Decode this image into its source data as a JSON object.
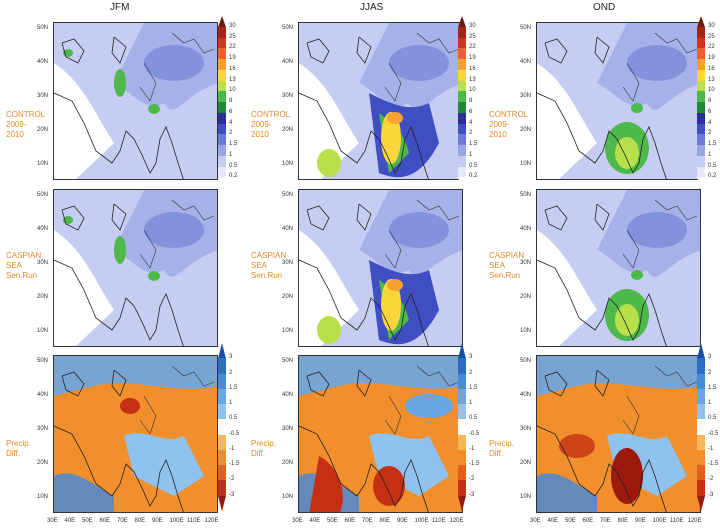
{
  "seasons": [
    "JFM",
    "JJAS",
    "OND"
  ],
  "row_labels": {
    "control": [
      "CONTROL",
      "2009-",
      "2010"
    ],
    "caspian": [
      "CASPIAN",
      "SEA",
      "Sen.Run"
    ],
    "diff": [
      "Precip.",
      "Diff."
    ]
  },
  "lat_labels": [
    "50N",
    "40N",
    "30N",
    "20N",
    "10N"
  ],
  "lon_labels": [
    "30E",
    "40E",
    "50E",
    "60E",
    "70E",
    "80E",
    "90E",
    "100E",
    "110E",
    "120E"
  ],
  "precip_scale": {
    "ticks": [
      "30",
      "25",
      "22",
      "19",
      "16",
      "13",
      "10",
      "8",
      "6",
      "4",
      "2",
      "1.5",
      "1",
      "0.5",
      "0.2"
    ],
    "colors": [
      "#6b1a0b",
      "#a42419",
      "#d6301e",
      "#f0602a",
      "#f8a12f",
      "#fbd63a",
      "#b9e04a",
      "#4cb94a",
      "#1d8a3a",
      "#2c2f96",
      "#3f4fc2",
      "#6d7bd6",
      "#9aa5e6",
      "#c6cdf2",
      "#e6e9fa",
      "#ffffff"
    ]
  },
  "diff_scale": {
    "ticks": [
      "3",
      "2",
      "1.5",
      "1",
      "0.5",
      "-0.5",
      "-1",
      "-1.5",
      "-2",
      "-3"
    ],
    "colors": [
      "#1a4fa3",
      "#2f6cc4",
      "#4b8ad6",
      "#6aa6e4",
      "#90c2ef",
      "#ffffff",
      "#f6b65a",
      "#f08f2c",
      "#e0601c",
      "#c53015",
      "#9b1a0c"
    ]
  },
  "chart_data": [
    {
      "type": "heatmap",
      "title": "JFM",
      "row": "CONTROL 2009-2010",
      "variable": "precipitation",
      "xlim": [
        "30E",
        "120E"
      ],
      "ylim": [
        "5N",
        "50N"
      ]
    },
    {
      "type": "heatmap",
      "title": "JJAS",
      "row": "CONTROL 2009-2010",
      "variable": "precipitation",
      "xlim": [
        "30E",
        "120E"
      ],
      "ylim": [
        "5N",
        "50N"
      ]
    },
    {
      "type": "heatmap",
      "title": "OND",
      "row": "CONTROL 2009-2010",
      "variable": "precipitation",
      "xlim": [
        "30E",
        "120E"
      ],
      "ylim": [
        "5N",
        "50N"
      ]
    },
    {
      "type": "heatmap",
      "title": "JFM",
      "row": "CASPIAN SEA Sen.Run",
      "variable": "precipitation",
      "xlim": [
        "30E",
        "120E"
      ],
      "ylim": [
        "5N",
        "50N"
      ]
    },
    {
      "type": "heatmap",
      "title": "JJAS",
      "row": "CASPIAN SEA Sen.Run",
      "variable": "precipitation",
      "xlim": [
        "30E",
        "120E"
      ],
      "ylim": [
        "5N",
        "50N"
      ]
    },
    {
      "type": "heatmap",
      "title": "OND",
      "row": "CASPIAN SEA Sen.Run",
      "variable": "precipitation",
      "xlim": [
        "30E",
        "120E"
      ],
      "ylim": [
        "5N",
        "50N"
      ]
    },
    {
      "type": "heatmap",
      "title": "JFM",
      "row": "Precip. Diff.",
      "variable": "precipitation difference",
      "xlim": [
        "30E",
        "120E"
      ],
      "ylim": [
        "5N",
        "50N"
      ]
    },
    {
      "type": "heatmap",
      "title": "JJAS",
      "row": "Precip. Diff.",
      "variable": "precipitation difference",
      "xlim": [
        "30E",
        "120E"
      ],
      "ylim": [
        "5N",
        "50N"
      ]
    },
    {
      "type": "heatmap",
      "title": "OND",
      "row": "Precip. Diff.",
      "variable": "precipitation difference",
      "xlim": [
        "30E",
        "120E"
      ],
      "ylim": [
        "5N",
        "50N"
      ]
    }
  ]
}
